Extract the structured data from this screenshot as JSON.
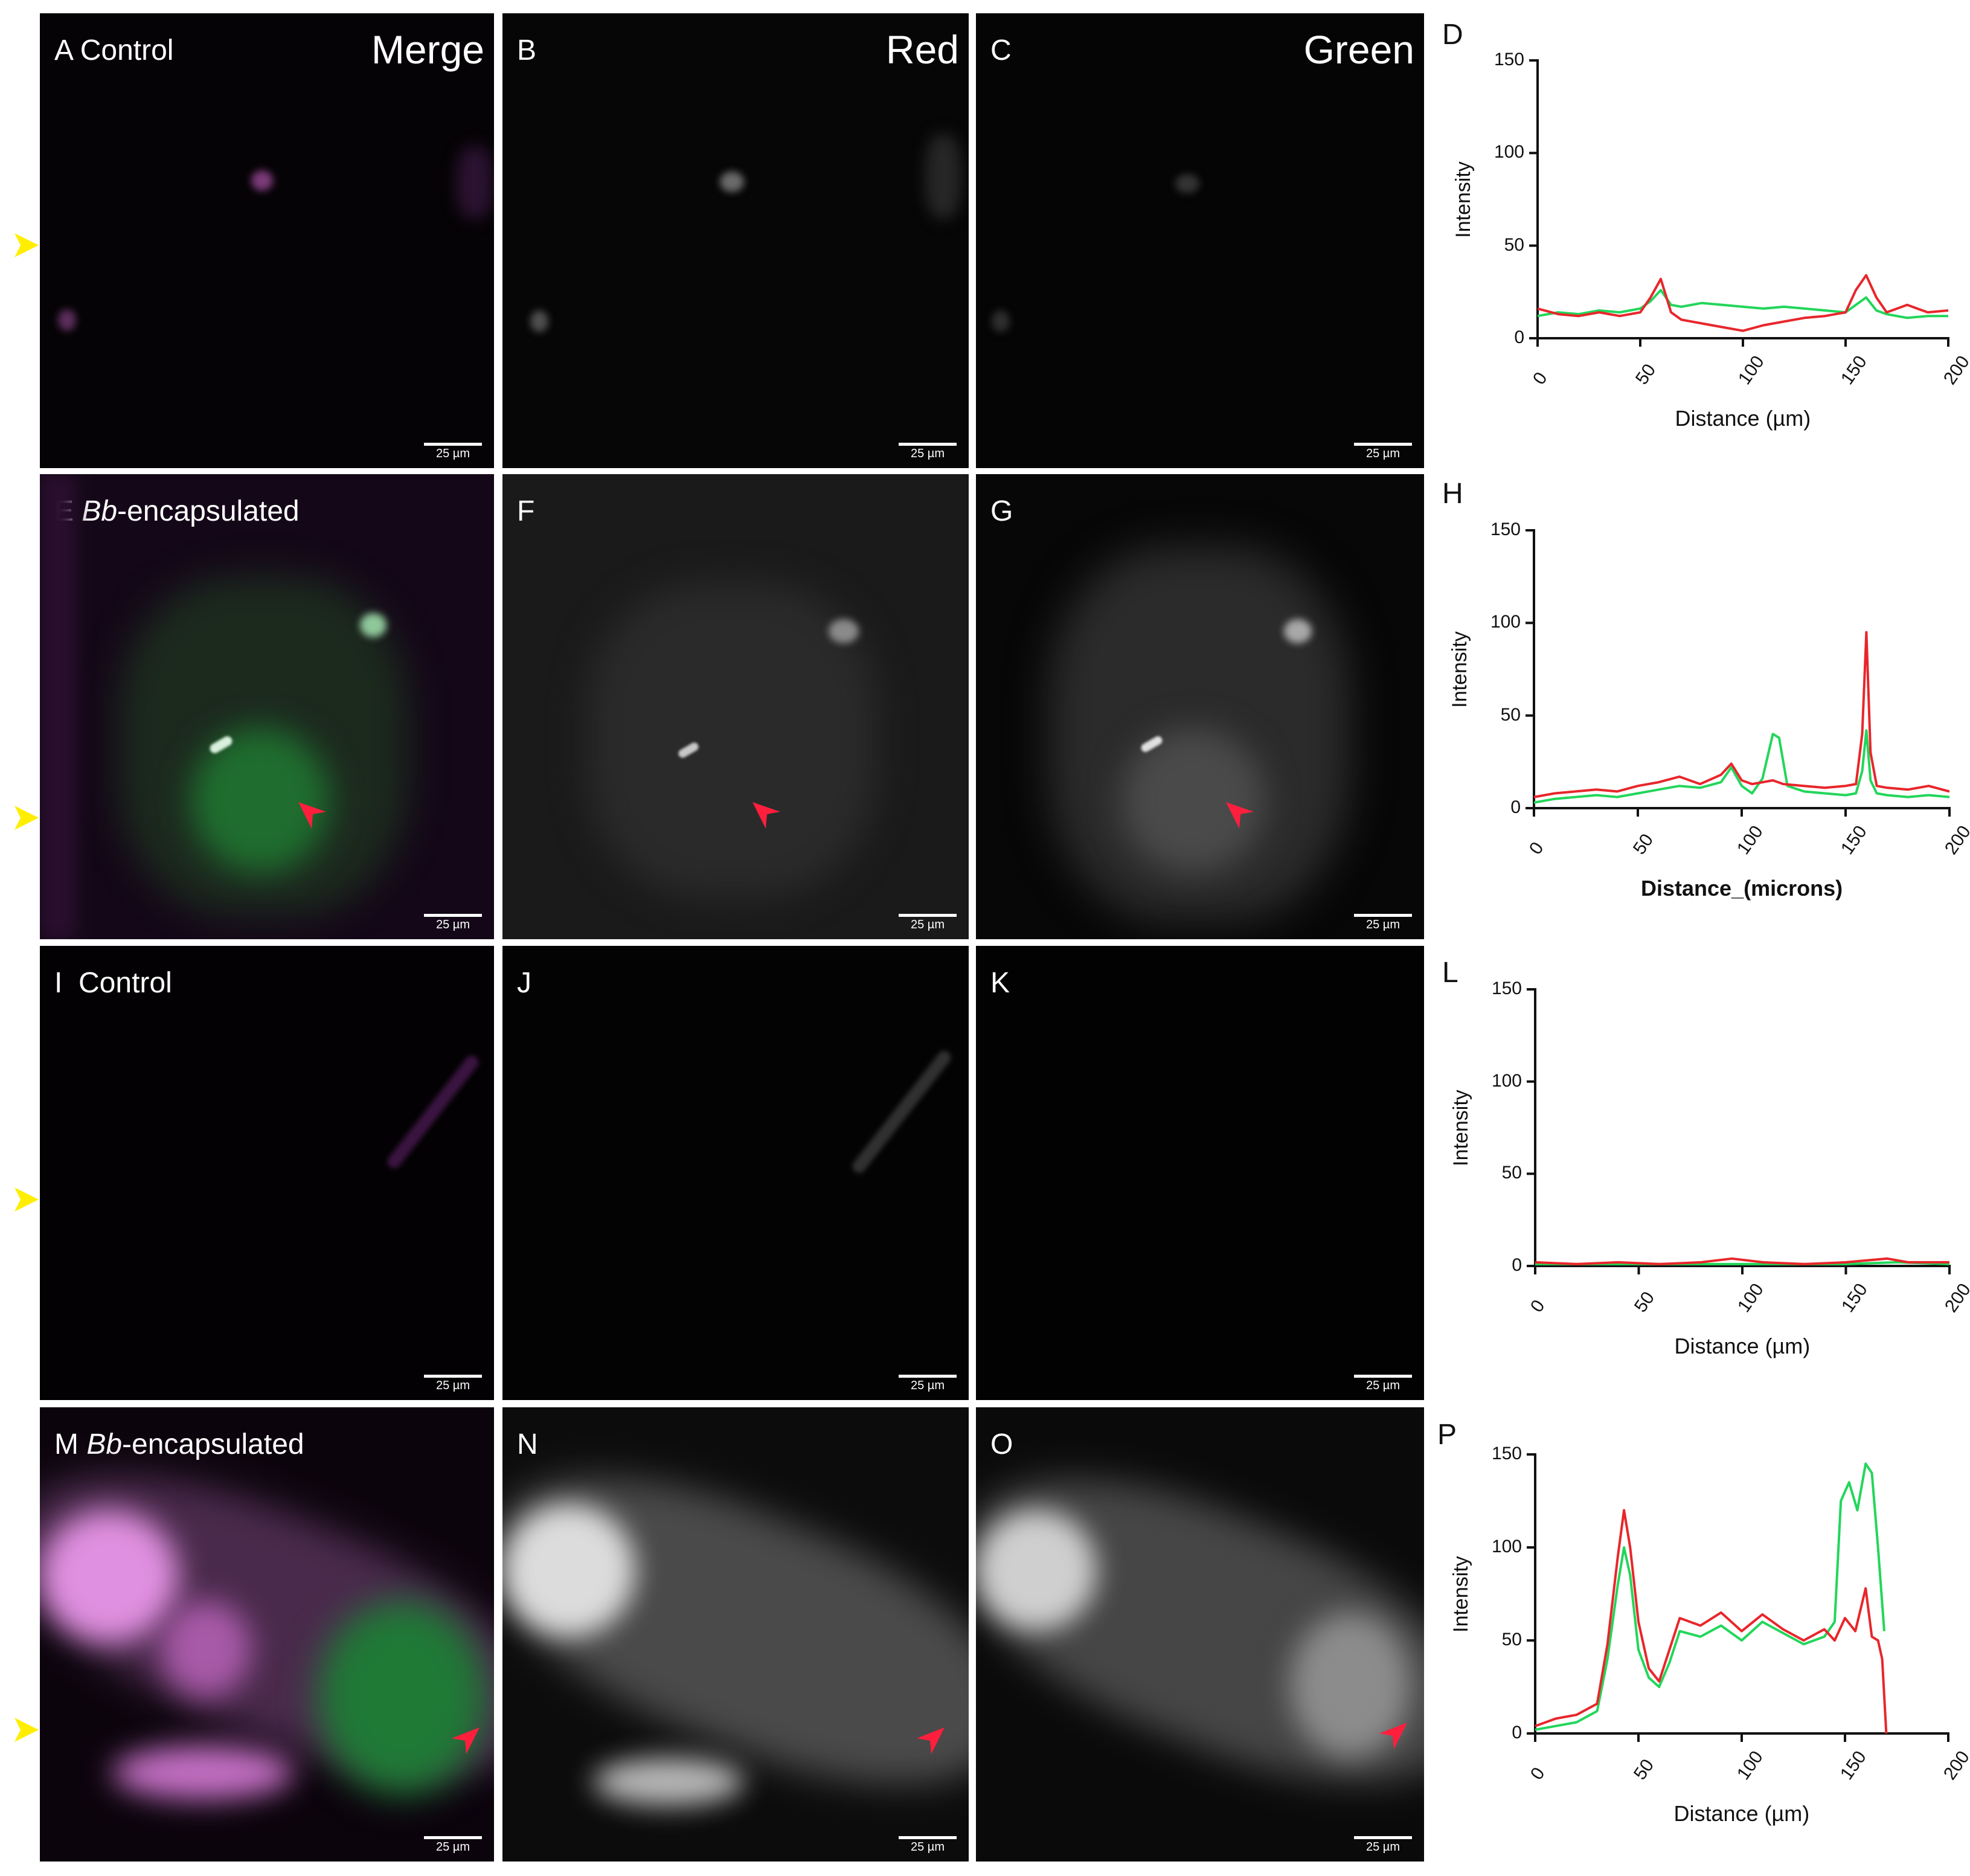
{
  "rows": [
    {
      "panels": [
        {
          "label_letter": "A",
          "label_text": "Control",
          "label_italic": "",
          "label_rest": "",
          "channel": "Merge",
          "scale": "25 µm"
        },
        {
          "label_letter": "B",
          "label_text": "",
          "label_italic": "",
          "label_rest": "",
          "channel": "Red",
          "scale": "25 µm"
        },
        {
          "label_letter": "C",
          "label_text": "",
          "label_italic": "",
          "label_rest": "",
          "channel": "Green",
          "scale": "25 µm"
        }
      ]
    },
    {
      "panels": [
        {
          "label_letter": "E",
          "label_text": "",
          "label_italic": "Bb",
          "label_rest": "-encapsulated",
          "channel": "",
          "scale": "25 µm"
        },
        {
          "label_letter": "F",
          "label_text": "",
          "label_italic": "",
          "label_rest": "",
          "channel": "",
          "scale": "25 µm"
        },
        {
          "label_letter": "G",
          "label_text": "",
          "label_italic": "",
          "label_rest": "",
          "channel": "",
          "scale": "25 µm"
        }
      ]
    },
    {
      "panels": [
        {
          "label_letter": "I",
          "label_text": "Control",
          "label_italic": "",
          "label_rest": "",
          "channel": "",
          "scale": "25 µm"
        },
        {
          "label_letter": "J",
          "label_text": "",
          "label_italic": "",
          "label_rest": "",
          "channel": "",
          "scale": "25 µm"
        },
        {
          "label_letter": "K",
          "label_text": "",
          "label_italic": "",
          "label_rest": "",
          "channel": "",
          "scale": "25 µm"
        }
      ]
    },
    {
      "panels": [
        {
          "label_letter": "M",
          "label_text": "",
          "label_italic": "Bb",
          "label_rest": "-encapsulated",
          "channel": "",
          "scale": "25 µm"
        },
        {
          "label_letter": "N",
          "label_text": "",
          "label_italic": "",
          "label_rest": "",
          "channel": "",
          "scale": "25 µm"
        },
        {
          "label_letter": "O",
          "label_text": "",
          "label_italic": "",
          "label_rest": "",
          "channel": "",
          "scale": "25 µm"
        }
      ]
    }
  ],
  "colors": {
    "red_series": "#e8262b",
    "green_series": "#22d65a",
    "red_arrow": "#ff1f3d",
    "yellow_arrow": "#ffee00",
    "merge_green": "#1fa54a",
    "merge_magenta": "#c04fc4"
  },
  "chart_data": [
    {
      "panel": "D",
      "type": "line",
      "ylabel": "Intensity",
      "xlabel": "Distance (µm)",
      "xlabel_bold": false,
      "xlim": [
        0,
        200
      ],
      "ylim": [
        0,
        150
      ],
      "xticks": [
        0,
        50,
        100,
        150,
        200
      ],
      "yticks": [
        0,
        50,
        100,
        150
      ],
      "series": [
        {
          "color": "green",
          "x": [
            0,
            10,
            20,
            30,
            40,
            50,
            55,
            60,
            65,
            70,
            80,
            90,
            100,
            110,
            120,
            130,
            140,
            150,
            155,
            160,
            165,
            170,
            180,
            190,
            200
          ],
          "y": [
            12,
            14,
            13,
            15,
            14,
            16,
            20,
            26,
            18,
            17,
            19,
            18,
            17,
            16,
            17,
            16,
            15,
            14,
            18,
            22,
            15,
            13,
            11,
            12,
            12
          ]
        },
        {
          "color": "red",
          "x": [
            0,
            10,
            20,
            30,
            40,
            50,
            55,
            60,
            65,
            70,
            80,
            90,
            100,
            110,
            120,
            130,
            140,
            150,
            155,
            160,
            165,
            170,
            180,
            190,
            200
          ],
          "y": [
            16,
            13,
            12,
            14,
            12,
            14,
            22,
            32,
            14,
            10,
            8,
            6,
            4,
            7,
            9,
            11,
            12,
            14,
            26,
            34,
            22,
            14,
            18,
            14,
            15
          ]
        }
      ]
    },
    {
      "panel": "H",
      "type": "line",
      "ylabel": "Intensity",
      "xlabel": "Distance_(microns)",
      "xlabel_bold": true,
      "xlim": [
        0,
        200
      ],
      "ylim": [
        0,
        150
      ],
      "xticks": [
        0,
        50,
        100,
        150,
        200
      ],
      "yticks": [
        0,
        50,
        100,
        150
      ],
      "series": [
        {
          "color": "green",
          "x": [
            0,
            10,
            20,
            30,
            40,
            50,
            60,
            70,
            80,
            90,
            95,
            100,
            105,
            110,
            115,
            118,
            122,
            130,
            140,
            150,
            155,
            158,
            160,
            162,
            165,
            170,
            180,
            190,
            200
          ],
          "y": [
            3,
            5,
            6,
            7,
            6,
            8,
            10,
            12,
            11,
            14,
            22,
            12,
            8,
            16,
            40,
            38,
            12,
            9,
            8,
            7,
            8,
            20,
            42,
            15,
            8,
            7,
            6,
            7,
            6
          ]
        },
        {
          "color": "red",
          "x": [
            0,
            10,
            20,
            30,
            40,
            50,
            60,
            70,
            80,
            90,
            95,
            100,
            105,
            110,
            115,
            120,
            130,
            140,
            150,
            155,
            158,
            160,
            162,
            165,
            170,
            180,
            190,
            200
          ],
          "y": [
            6,
            8,
            9,
            10,
            9,
            12,
            14,
            17,
            13,
            18,
            24,
            15,
            13,
            14,
            15,
            13,
            12,
            11,
            12,
            13,
            40,
            95,
            30,
            12,
            11,
            10,
            12,
            9
          ]
        }
      ]
    },
    {
      "panel": "L",
      "type": "line",
      "ylabel": "Intensity",
      "xlabel": "Distance (µm)",
      "xlabel_bold": false,
      "xlim": [
        0,
        200
      ],
      "ylim": [
        0,
        150
      ],
      "xticks": [
        0,
        50,
        100,
        150,
        200
      ],
      "yticks": [
        0,
        50,
        100,
        150
      ],
      "series": [
        {
          "color": "green",
          "x": [
            0,
            25,
            50,
            75,
            100,
            125,
            150,
            175,
            200
          ],
          "y": [
            1,
            1,
            1,
            1,
            1,
            1,
            1,
            2,
            1
          ]
        },
        {
          "color": "red",
          "x": [
            0,
            20,
            40,
            60,
            80,
            95,
            110,
            130,
            150,
            170,
            180,
            200
          ],
          "y": [
            2,
            1,
            2,
            1,
            2,
            4,
            2,
            1,
            2,
            4,
            2,
            2
          ]
        }
      ]
    },
    {
      "panel": "P",
      "type": "line",
      "ylabel": "Intensity",
      "xlabel": "Distance (µm)",
      "xlabel_bold": false,
      "xlim": [
        0,
        200
      ],
      "ylim": [
        0,
        150
      ],
      "xticks": [
        0,
        50,
        100,
        150,
        200
      ],
      "yticks": [
        0,
        50,
        100,
        150
      ],
      "series": [
        {
          "color": "green",
          "x": [
            0,
            10,
            20,
            30,
            35,
            40,
            43,
            46,
            50,
            55,
            60,
            65,
            70,
            80,
            90,
            100,
            110,
            120,
            130,
            140,
            145,
            148,
            152,
            156,
            160,
            163,
            166,
            169
          ],
          "y": [
            2,
            4,
            6,
            12,
            40,
            80,
            100,
            85,
            45,
            30,
            25,
            38,
            55,
            52,
            58,
            50,
            60,
            54,
            48,
            52,
            60,
            125,
            135,
            120,
            145,
            140,
            100,
            55
          ]
        },
        {
          "color": "red",
          "x": [
            0,
            10,
            20,
            30,
            35,
            40,
            43,
            46,
            50,
            55,
            60,
            65,
            70,
            80,
            90,
            100,
            110,
            120,
            130,
            140,
            145,
            150,
            155,
            160,
            163,
            166,
            168,
            170
          ],
          "y": [
            4,
            8,
            10,
            16,
            48,
            95,
            120,
            100,
            60,
            35,
            28,
            45,
            62,
            58,
            65,
            55,
            64,
            56,
            50,
            56,
            50,
            62,
            55,
            78,
            52,
            50,
            40,
            0
          ]
        }
      ]
    }
  ]
}
